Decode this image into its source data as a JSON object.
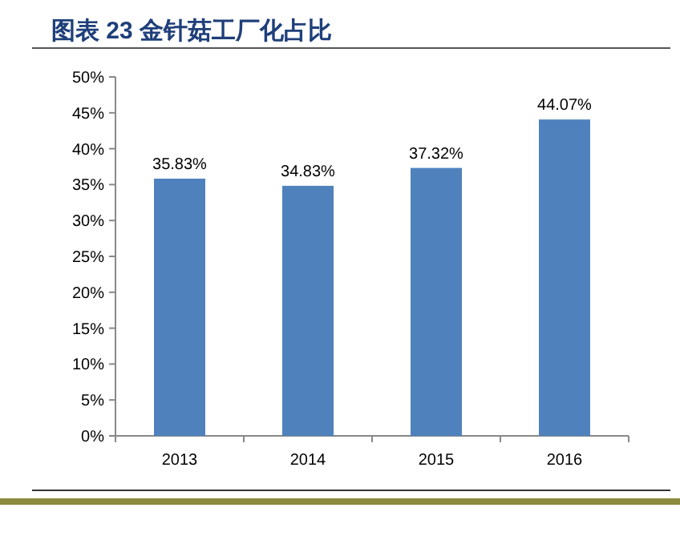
{
  "chart_data": {
    "type": "bar",
    "title": "图表 23 金针菇工厂化占比",
    "categories": [
      "2013",
      "2014",
      "2015",
      "2016"
    ],
    "values": [
      35.83,
      34.83,
      37.32,
      44.07
    ],
    "value_labels": [
      "35.83%",
      "34.83%",
      "37.32%",
      "44.07%"
    ],
    "color": "#4f81bd",
    "ylim": [
      0,
      50
    ],
    "yticks": [
      {
        "value": 0,
        "label": "0%"
      },
      {
        "value": 5,
        "label": "5%"
      },
      {
        "value": 10,
        "label": "10%"
      },
      {
        "value": 15,
        "label": "15%"
      },
      {
        "value": 20,
        "label": "20%"
      },
      {
        "value": 25,
        "label": "25%"
      },
      {
        "value": 30,
        "label": "30%"
      },
      {
        "value": 35,
        "label": "35%"
      },
      {
        "value": 40,
        "label": "40%"
      },
      {
        "value": 45,
        "label": "45%"
      },
      {
        "value": 50,
        "label": "50%"
      }
    ],
    "grid": false
  }
}
